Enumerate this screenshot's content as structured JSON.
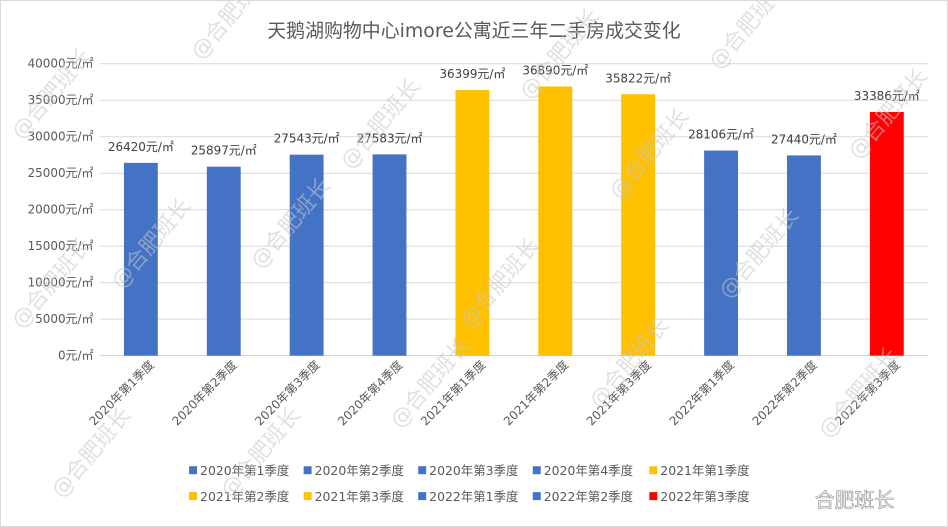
{
  "chart_data": {
    "type": "bar",
    "title": "天鹅湖购物中心imore公寓近三年二手房成交变化",
    "categories": [
      "2020年第1季度",
      "2020年第2季度",
      "2020年第3季度",
      "2020年第4季度",
      "2021年第1季度",
      "2021年第2季度",
      "2021年第3季度",
      "2022年第1季度",
      "2022年第2季度",
      "2022年第3季度"
    ],
    "values": [
      26420,
      25897,
      27543,
      27583,
      36399,
      36890,
      35822,
      28106,
      27440,
      33386
    ],
    "data_labels": [
      "26420元/㎡",
      "25897元/㎡",
      "27543元/㎡",
      "27583元/㎡",
      "36399元/㎡",
      "36890元/㎡",
      "35822元/㎡",
      "28106元/㎡",
      "27440元/㎡",
      "33386元/㎡"
    ],
    "colors": [
      "#4472C4",
      "#4472C4",
      "#4472C4",
      "#4472C4",
      "#FFC000",
      "#FFC000",
      "#FFC000",
      "#4472C4",
      "#4472C4",
      "#FF0000"
    ],
    "ylim": [
      0,
      40000
    ],
    "yticks": [
      0,
      5000,
      10000,
      15000,
      20000,
      25000,
      30000,
      35000,
      40000
    ],
    "ytick_labels": [
      "0元/㎡",
      "5000元/㎡",
      "10000元/㎡",
      "15000元/㎡",
      "20000元/㎡",
      "25000元/㎡",
      "30000元/㎡",
      "35000元/㎡",
      "40000元/㎡"
    ],
    "xlabel": "",
    "ylabel": "",
    "grid": true,
    "legend_position": "bottom"
  },
  "watermark": {
    "text": "@合肥班长",
    "corner_text": "合肥班长"
  }
}
